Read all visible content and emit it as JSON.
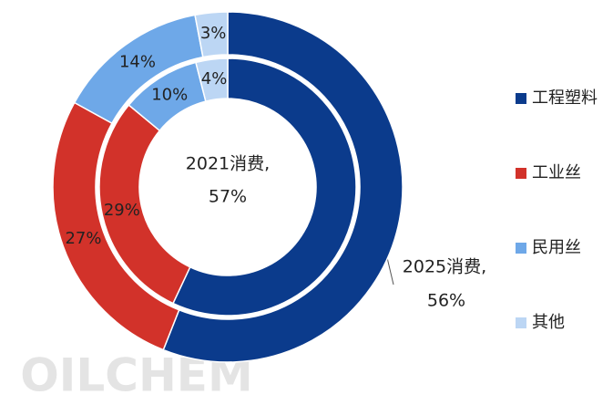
{
  "chart_data": {
    "type": "pie",
    "categories": [
      "工程塑料",
      "工业丝",
      "民用丝",
      "其他"
    ],
    "colors": [
      "#0b3b8c",
      "#d2322a",
      "#6ea8e8",
      "#bcd6f4"
    ],
    "series": [
      {
        "values": [
          57,
          29,
          10,
          4
        ],
        "value_labels": [
          "57%",
          "29%",
          "10%",
          "4%"
        ]
      },
      {
        "values": [
          56,
          27,
          14,
          3
        ],
        "value_labels": [
          "56%",
          "27%",
          "14%",
          "3%"
        ]
      }
    ],
    "annotations": [
      "2021消费,",
      "2025消费,"
    ],
    "watermark": "OILCHEM",
    "legend": "right"
  }
}
